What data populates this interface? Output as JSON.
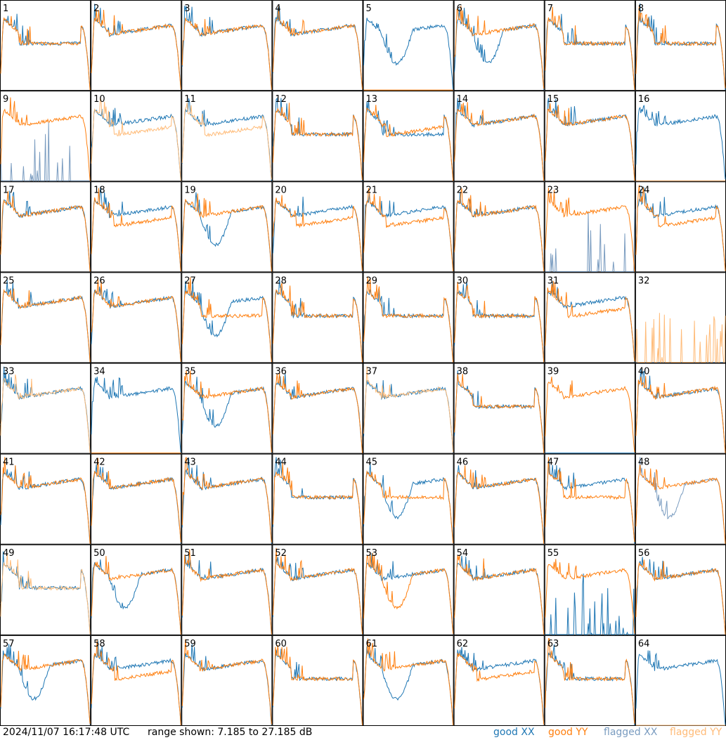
{
  "footer": {
    "timestamp": "2024/11/07 16:17:48 UTC",
    "range_text": "range shown: 7.185 to 27.185 dB",
    "legend": {
      "good_xx": "good XX",
      "good_yy": "good YY",
      "flagged_xx": "flagged XX",
      "flagged_yy": "flagged YY"
    }
  },
  "colors": {
    "good_xx": "#1f77b4",
    "good_yy": "#ff7f0e",
    "flagged_xx": "#7a9cc0",
    "flagged_yy": "#ffbb78"
  },
  "chart_data": {
    "type": "line",
    "layout": "8x8 grid of antenna spectra",
    "ylim": [
      7.185,
      27.185
    ],
    "units": "dB",
    "series_kinds": [
      "XX",
      "YY"
    ],
    "panels": [
      {
        "label": "1",
        "xx": "good",
        "yy": "good",
        "xx_shape": "flat",
        "yy_shape": "flat"
      },
      {
        "label": "2",
        "xx": "good",
        "yy": "good",
        "xx_shape": "normal",
        "yy_shape": "normal"
      },
      {
        "label": "3",
        "xx": "good",
        "yy": "good",
        "xx_shape": "normal",
        "yy_shape": "normal"
      },
      {
        "label": "4",
        "xx": "good",
        "yy": "good",
        "xx_shape": "normal",
        "yy_shape": "normal"
      },
      {
        "label": "5",
        "xx": "good",
        "yy": "good",
        "xx_shape": "dip",
        "yy_shape": "dead"
      },
      {
        "label": "6",
        "xx": "good",
        "yy": "good",
        "xx_shape": "dip",
        "yy_shape": "normal"
      },
      {
        "label": "7",
        "xx": "good",
        "yy": "good",
        "xx_shape": "flat",
        "yy_shape": "flat"
      },
      {
        "label": "8",
        "xx": "good",
        "yy": "good",
        "xx_shape": "flat",
        "yy_shape": "flat"
      },
      {
        "label": "9",
        "xx": "flagged",
        "yy": "good",
        "xx_shape": "spiky",
        "yy_shape": "normal"
      },
      {
        "label": "10",
        "xx": "good",
        "yy": "flagged",
        "xx_shape": "normal",
        "yy_shape": "low"
      },
      {
        "label": "11",
        "xx": "good",
        "yy": "flagged",
        "xx_shape": "normal",
        "yy_shape": "low"
      },
      {
        "label": "12",
        "xx": "good",
        "yy": "good",
        "xx_shape": "flat",
        "yy_shape": "flat"
      },
      {
        "label": "13",
        "xx": "good",
        "yy": "good",
        "xx_shape": "flat",
        "yy_shape": "low"
      },
      {
        "label": "14",
        "xx": "good",
        "yy": "good",
        "xx_shape": "normal",
        "yy_shape": "normal"
      },
      {
        "label": "15",
        "xx": "good",
        "yy": "good",
        "xx_shape": "normal",
        "yy_shape": "normal"
      },
      {
        "label": "16",
        "xx": "good",
        "yy": "flagged",
        "xx_shape": "normal",
        "yy_shape": "dead"
      },
      {
        "label": "17",
        "xx": "good",
        "yy": "good",
        "xx_shape": "normal",
        "yy_shape": "normal"
      },
      {
        "label": "18",
        "xx": "good",
        "yy": "good",
        "xx_shape": "normal",
        "yy_shape": "low"
      },
      {
        "label": "19",
        "xx": "good",
        "yy": "good",
        "xx_shape": "dip",
        "yy_shape": "normal"
      },
      {
        "label": "20",
        "xx": "good",
        "yy": "good",
        "xx_shape": "normal",
        "yy_shape": "low"
      },
      {
        "label": "21",
        "xx": "good",
        "yy": "good",
        "xx_shape": "normal",
        "yy_shape": "low"
      },
      {
        "label": "22",
        "xx": "good",
        "yy": "good",
        "xx_shape": "normal",
        "yy_shape": "normal"
      },
      {
        "label": "23",
        "xx": "flagged",
        "yy": "good",
        "xx_shape": "spiky",
        "yy_shape": "normal"
      },
      {
        "label": "24",
        "xx": "good",
        "yy": "good",
        "xx_shape": "normal",
        "yy_shape": "low"
      },
      {
        "label": "25",
        "xx": "good",
        "yy": "good",
        "xx_shape": "normal",
        "yy_shape": "normal"
      },
      {
        "label": "26",
        "xx": "good",
        "yy": "good",
        "xx_shape": "normal",
        "yy_shape": "normal"
      },
      {
        "label": "27",
        "xx": "good",
        "yy": "good",
        "xx_shape": "dip",
        "yy_shape": "flat"
      },
      {
        "label": "28",
        "xx": "good",
        "yy": "good",
        "xx_shape": "flat",
        "yy_shape": "flat"
      },
      {
        "label": "29",
        "xx": "good",
        "yy": "good",
        "xx_shape": "flat",
        "yy_shape": "flat"
      },
      {
        "label": "30",
        "xx": "good",
        "yy": "good",
        "xx_shape": "flat",
        "yy_shape": "flat"
      },
      {
        "label": "31",
        "xx": "good",
        "yy": "good",
        "xx_shape": "normal",
        "yy_shape": "low"
      },
      {
        "label": "32",
        "xx": "flagged",
        "yy": "flagged",
        "xx_shape": "dead",
        "yy_shape": "spiky"
      },
      {
        "label": "33",
        "xx": "good",
        "yy": "flagged",
        "xx_shape": "normal",
        "yy_shape": "normal"
      },
      {
        "label": "34",
        "xx": "good",
        "yy": "good",
        "xx_shape": "normal",
        "yy_shape": "dead"
      },
      {
        "label": "35",
        "xx": "good",
        "yy": "good",
        "xx_shape": "dip",
        "yy_shape": "normal"
      },
      {
        "label": "36",
        "xx": "good",
        "yy": "good",
        "xx_shape": "normal",
        "yy_shape": "normal"
      },
      {
        "label": "37",
        "xx": "good",
        "yy": "flagged",
        "xx_shape": "normal",
        "yy_shape": "normal"
      },
      {
        "label": "38",
        "xx": "good",
        "yy": "good",
        "xx_shape": "flat",
        "yy_shape": "flat"
      },
      {
        "label": "39",
        "xx": "good",
        "yy": "good",
        "xx_shape": "dead",
        "yy_shape": "normal"
      },
      {
        "label": "40",
        "xx": "good",
        "yy": "good",
        "xx_shape": "normal",
        "yy_shape": "normal"
      },
      {
        "label": "41",
        "xx": "good",
        "yy": "good",
        "xx_shape": "normal",
        "yy_shape": "normal"
      },
      {
        "label": "42",
        "xx": "good",
        "yy": "good",
        "xx_shape": "normal",
        "yy_shape": "normal"
      },
      {
        "label": "43",
        "xx": "good",
        "yy": "good",
        "xx_shape": "normal",
        "yy_shape": "normal"
      },
      {
        "label": "44",
        "xx": "good",
        "yy": "good",
        "xx_shape": "flat",
        "yy_shape": "flat"
      },
      {
        "label": "45",
        "xx": "good",
        "yy": "good",
        "xx_shape": "dip",
        "yy_shape": "flat"
      },
      {
        "label": "46",
        "xx": "good",
        "yy": "good",
        "xx_shape": "normal",
        "yy_shape": "normal"
      },
      {
        "label": "47",
        "xx": "good",
        "yy": "good",
        "xx_shape": "normal",
        "yy_shape": "flat"
      },
      {
        "label": "48",
        "xx": "flagged",
        "yy": "good",
        "xx_shape": "dip",
        "yy_shape": "normal"
      },
      {
        "label": "49",
        "xx": "good",
        "yy": "flagged",
        "xx_shape": "flat",
        "yy_shape": "flat"
      },
      {
        "label": "50",
        "xx": "good",
        "yy": "good",
        "xx_shape": "dip",
        "yy_shape": "normal"
      },
      {
        "label": "51",
        "xx": "good",
        "yy": "good",
        "xx_shape": "normal",
        "yy_shape": "normal"
      },
      {
        "label": "52",
        "xx": "good",
        "yy": "good",
        "xx_shape": "normal",
        "yy_shape": "normal"
      },
      {
        "label": "53",
        "xx": "good",
        "yy": "good",
        "xx_shape": "normal",
        "yy_shape": "dip"
      },
      {
        "label": "54",
        "xx": "good",
        "yy": "good",
        "xx_shape": "normal",
        "yy_shape": "normal"
      },
      {
        "label": "55",
        "xx": "good",
        "yy": "good",
        "xx_shape": "spiky",
        "yy_shape": "normal"
      },
      {
        "label": "56",
        "xx": "good",
        "yy": "good",
        "xx_shape": "normal",
        "yy_shape": "normal"
      },
      {
        "label": "57",
        "xx": "good",
        "yy": "good",
        "xx_shape": "dip",
        "yy_shape": "normal"
      },
      {
        "label": "58",
        "xx": "good",
        "yy": "good",
        "xx_shape": "normal",
        "yy_shape": "low"
      },
      {
        "label": "59",
        "xx": "good",
        "yy": "good",
        "xx_shape": "normal",
        "yy_shape": "normal"
      },
      {
        "label": "60",
        "xx": "good",
        "yy": "good",
        "xx_shape": "flat",
        "yy_shape": "flat"
      },
      {
        "label": "61",
        "xx": "good",
        "yy": "good",
        "xx_shape": "dip",
        "yy_shape": "normal"
      },
      {
        "label": "62",
        "xx": "good",
        "yy": "good",
        "xx_shape": "normal",
        "yy_shape": "low"
      },
      {
        "label": "63",
        "xx": "good",
        "yy": "good",
        "xx_shape": "flat",
        "yy_shape": "flat"
      },
      {
        "label": "64",
        "xx": "good",
        "yy": "flagged",
        "xx_shape": "normal",
        "yy_shape": "dead"
      }
    ]
  }
}
